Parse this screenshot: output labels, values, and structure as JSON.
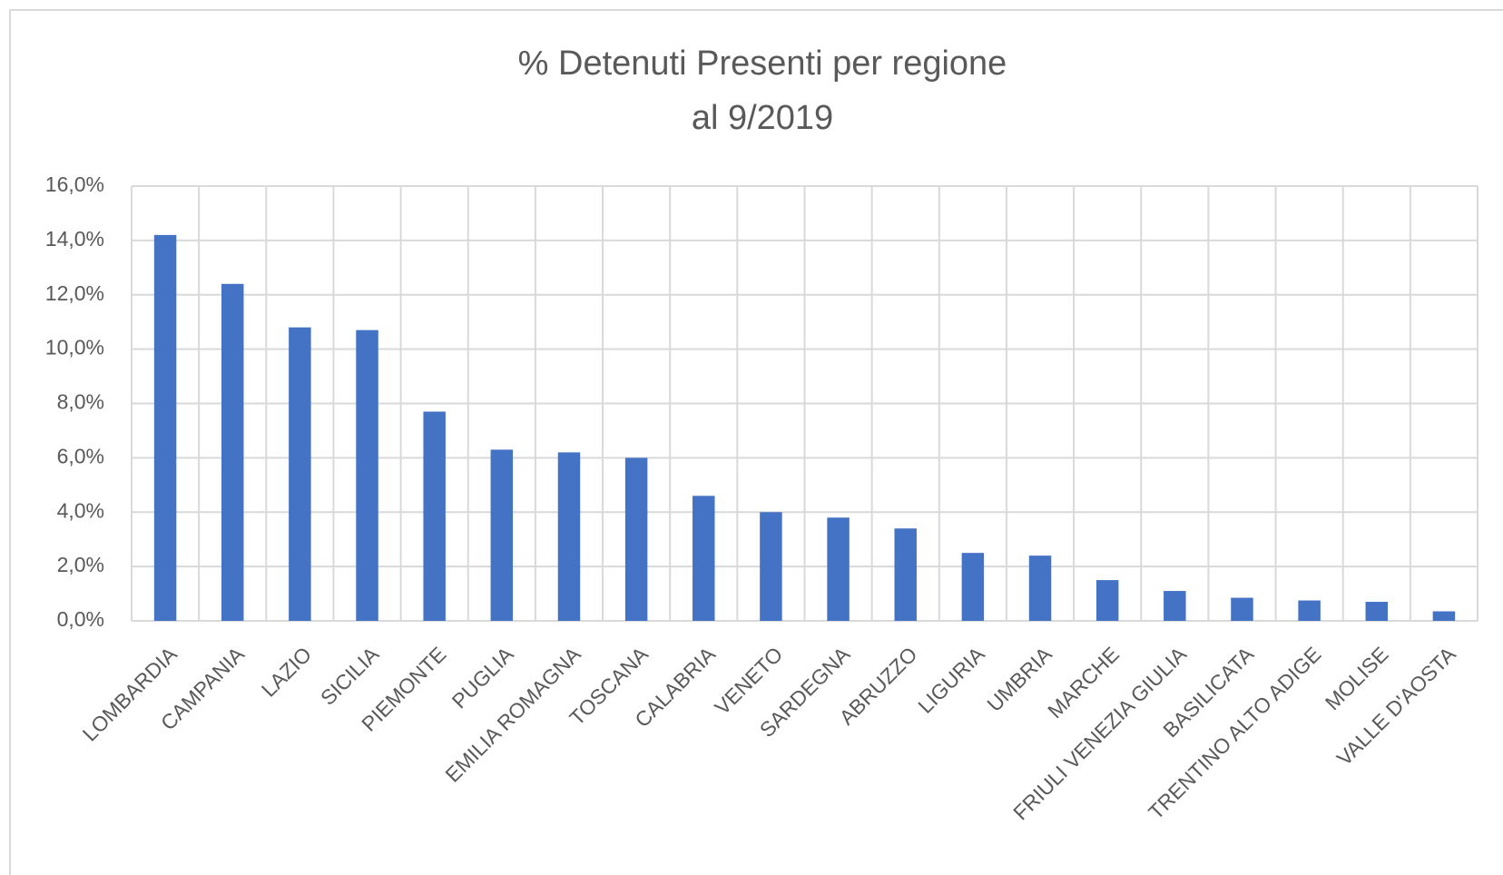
{
  "chart_data": {
    "type": "bar",
    "title": [
      "% Detenuti Presenti per regione",
      "al 9/2019"
    ],
    "categories": [
      "LOMBARDIA",
      "CAMPANIA",
      "LAZIO",
      "SICILIA",
      "PIEMONTE",
      "PUGLIA",
      "EMILIA ROMAGNA",
      "TOSCANA",
      "CALABRIA",
      "VENETO",
      "SARDEGNA",
      "ABRUZZO",
      "LIGURIA",
      "UMBRIA",
      "MARCHE",
      "FRIULI VENEZIA GIULIA",
      "BASILICATA",
      "TRENTINO ALTO ADIGE",
      "MOLISE",
      "VALLE D'AOSTA"
    ],
    "values": [
      14.2,
      12.4,
      10.8,
      10.7,
      7.7,
      6.3,
      6.2,
      6.0,
      4.6,
      4.0,
      3.8,
      3.4,
      2.5,
      2.4,
      1.5,
      1.1,
      0.85,
      0.75,
      0.7,
      0.35
    ],
    "color": "#4472c4",
    "ylim": [
      0,
      16
    ],
    "yticks": [
      {
        "value": 0,
        "label": "0,0%"
      },
      {
        "value": 2,
        "label": "2,0%"
      },
      {
        "value": 4,
        "label": "4,0%"
      },
      {
        "value": 6,
        "label": "6,0%"
      },
      {
        "value": 8,
        "label": "8,0%"
      },
      {
        "value": 10,
        "label": "10,0%"
      },
      {
        "value": 12,
        "label": "12,0%"
      },
      {
        "value": 14,
        "label": "14,0%"
      },
      {
        "value": 16,
        "label": "16,0%"
      }
    ],
    "grid": true
  }
}
